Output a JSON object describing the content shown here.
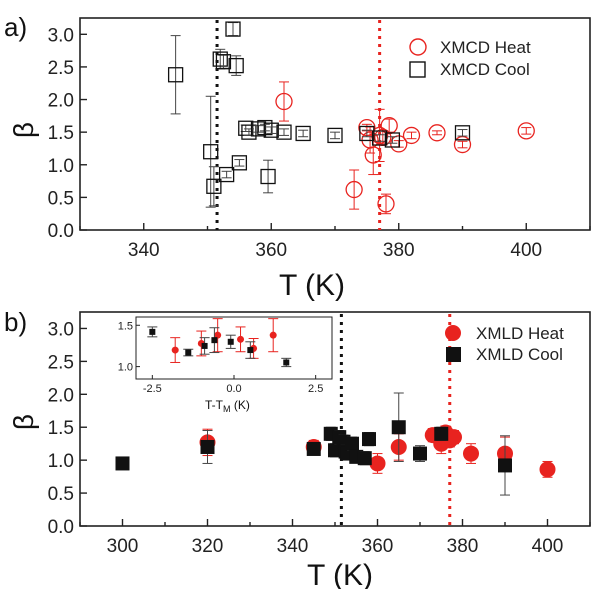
{
  "colors": {
    "heat": "#e8231f",
    "cool": "#111111",
    "axis": "#222222"
  },
  "chart_data": [
    {
      "panel_label": "a)",
      "type": "scatter",
      "xlabel": "T (K)",
      "ylabel": "β",
      "xlim": [
        330,
        410
      ],
      "ylim": [
        0.0,
        3.25
      ],
      "xticks": [
        340,
        360,
        380,
        400
      ],
      "yticks": [
        0.0,
        0.5,
        1.0,
        1.5,
        2.0,
        2.5,
        3.0
      ],
      "legend_position": "top-right",
      "vlines": [
        {
          "x": 351.5,
          "color": "cool"
        },
        {
          "x": 377.0,
          "color": "heat"
        }
      ],
      "series": [
        {
          "name": "XMCD Heat",
          "marker": "circle-open",
          "color": "heat",
          "points": [
            {
              "x": 362,
              "y": 1.97,
              "err": 0.3
            },
            {
              "x": 373,
              "y": 0.62,
              "err": 0.3
            },
            {
              "x": 375,
              "y": 1.57,
              "err": 0.05
            },
            {
              "x": 375.5,
              "y": 1.38,
              "err": 0.2
            },
            {
              "x": 376,
              "y": 1.15,
              "err": 0.3
            },
            {
              "x": 377,
              "y": 1.45,
              "err": 0.4
            },
            {
              "x": 377.5,
              "y": 1.42,
              "err": 0.1
            },
            {
              "x": 378,
              "y": 0.4,
              "err": 0.15
            },
            {
              "x": 378.5,
              "y": 1.6,
              "err": 0.1
            },
            {
              "x": 380,
              "y": 1.32,
              "err": 0.05
            },
            {
              "x": 382,
              "y": 1.45,
              "err": 0.05
            },
            {
              "x": 386,
              "y": 1.49,
              "err": 0.03
            },
            {
              "x": 390,
              "y": 1.31,
              "err": 0.05
            },
            {
              "x": 400,
              "y": 1.52,
              "err": 0.05
            }
          ]
        },
        {
          "name": "XMCD Cool",
          "marker": "square-open",
          "color": "cool",
          "points": [
            {
              "x": 345,
              "y": 2.38,
              "err": 0.6
            },
            {
              "x": 350.5,
              "y": 1.2,
              "err": 0.85
            },
            {
              "x": 351,
              "y": 0.67,
              "err": 0.3
            },
            {
              "x": 352,
              "y": 2.62,
              "err": 0.15
            },
            {
              "x": 352.5,
              "y": 2.58,
              "err": 0.1
            },
            {
              "x": 353,
              "y": 0.85,
              "err": 0.05
            },
            {
              "x": 354,
              "y": 3.08,
              "err": 0.1
            },
            {
              "x": 354.5,
              "y": 2.52,
              "err": 0.15
            },
            {
              "x": 355,
              "y": 1.03,
              "err": 0.05
            },
            {
              "x": 356,
              "y": 1.56,
              "err": 0.05
            },
            {
              "x": 356.5,
              "y": 1.5,
              "err": 0.05
            },
            {
              "x": 358,
              "y": 1.55,
              "err": 0.05
            },
            {
              "x": 359,
              "y": 1.57,
              "err": 0.05
            },
            {
              "x": 359.5,
              "y": 0.82,
              "err": 0.25
            },
            {
              "x": 360,
              "y": 1.53,
              "err": 0.05
            },
            {
              "x": 362,
              "y": 1.5,
              "err": 0.05
            },
            {
              "x": 365,
              "y": 1.48,
              "err": 0.05
            },
            {
              "x": 370,
              "y": 1.45,
              "err": 0.05
            },
            {
              "x": 375,
              "y": 1.48,
              "err": 0.05
            },
            {
              "x": 377,
              "y": 1.41,
              "err": 0.05
            },
            {
              "x": 379,
              "y": 1.38,
              "err": 0.05
            },
            {
              "x": 390,
              "y": 1.49,
              "err": 0.05
            }
          ]
        }
      ]
    },
    {
      "panel_label": "b)",
      "type": "scatter",
      "xlabel": "T (K)",
      "ylabel": "β",
      "xlim": [
        290,
        410
      ],
      "ylim": [
        0.0,
        3.25
      ],
      "xticks": [
        300,
        320,
        340,
        360,
        380,
        400
      ],
      "yticks": [
        0.0,
        0.5,
        1.0,
        1.5,
        2.0,
        2.5,
        3.0
      ],
      "legend_position": "top-right",
      "vlines": [
        {
          "x": 351.5,
          "color": "cool"
        },
        {
          "x": 377.0,
          "color": "heat"
        }
      ],
      "series": [
        {
          "name": "XMLD Heat",
          "marker": "circle-filled",
          "color": "heat",
          "points": [
            {
              "x": 320,
              "y": 1.27,
              "err": 0.2
            },
            {
              "x": 345,
              "y": 1.2,
              "err": 0.1
            },
            {
              "x": 360,
              "y": 0.95,
              "err": 0.15
            },
            {
              "x": 365,
              "y": 1.2,
              "err": 0.2
            },
            {
              "x": 373,
              "y": 1.38,
              "err": 0.1
            },
            {
              "x": 375,
              "y": 1.25,
              "err": 0.15
            },
            {
              "x": 376,
              "y": 1.42,
              "err": 0.1
            },
            {
              "x": 377,
              "y": 1.3,
              "err": 0.1
            },
            {
              "x": 378,
              "y": 1.35,
              "err": 0.1
            },
            {
              "x": 382,
              "y": 1.1,
              "err": 0.15
            },
            {
              "x": 390,
              "y": 1.1,
              "err": 0.25
            },
            {
              "x": 400,
              "y": 0.86,
              "err": 0.12
            }
          ]
        },
        {
          "name": "XMLD Cool",
          "marker": "square-filled",
          "color": "cool",
          "points": [
            {
              "x": 300,
              "y": 0.95,
              "err": 0.03
            },
            {
              "x": 320,
              "y": 1.2,
              "err": 0.25
            },
            {
              "x": 345,
              "y": 1.17,
              "err": 0.08
            },
            {
              "x": 349,
              "y": 1.4,
              "err": 0.1
            },
            {
              "x": 350,
              "y": 1.15,
              "err": 0.1
            },
            {
              "x": 351,
              "y": 1.35,
              "err": 0.1
            },
            {
              "x": 352,
              "y": 1.28,
              "err": 0.1
            },
            {
              "x": 352.5,
              "y": 1.13,
              "err": 0.1
            },
            {
              "x": 353,
              "y": 1.1,
              "err": 0.05
            },
            {
              "x": 354,
              "y": 1.25,
              "err": 0.1
            },
            {
              "x": 355,
              "y": 1.05,
              "err": 0.05
            },
            {
              "x": 357,
              "y": 1.03,
              "err": 0.1
            },
            {
              "x": 358,
              "y": 1.32,
              "err": 0.1
            },
            {
              "x": 365,
              "y": 1.5,
              "err": 0.52
            },
            {
              "x": 370,
              "y": 1.1,
              "err": 0.12
            },
            {
              "x": 375,
              "y": 1.4,
              "err": 0.1
            },
            {
              "x": 390,
              "y": 0.92,
              "err": 0.45
            }
          ]
        }
      ],
      "inset": {
        "xlabel_main": "T-T",
        "xlabel_sub": "M",
        "xlabel_tail": " (K)",
        "xlim": [
          -3.0,
          3.0
        ],
        "ylim": [
          0.85,
          1.6
        ],
        "xticks": [
          "-2.5",
          "0.0",
          "2.5"
        ],
        "xtick_values": [
          -2.5,
          0.0,
          2.5
        ],
        "yticks": [
          "1.0",
          "1.5"
        ],
        "ytick_values": [
          1.0,
          1.5
        ],
        "series": [
          {
            "color": "heat",
            "marker": "circle-filled",
            "points": [
              {
                "x": -1.8,
                "y": 1.2,
                "err": 0.15
              },
              {
                "x": -1.0,
                "y": 1.28,
                "err": 0.15
              },
              {
                "x": -0.5,
                "y": 1.38,
                "err": 0.2
              },
              {
                "x": 0.2,
                "y": 1.33,
                "err": 0.15
              },
              {
                "x": 0.6,
                "y": 1.22,
                "err": 0.12
              },
              {
                "x": 1.2,
                "y": 1.38,
                "err": 0.2
              }
            ]
          },
          {
            "color": "cool",
            "marker": "square-filled",
            "points": [
              {
                "x": -2.5,
                "y": 1.42,
                "err": 0.06
              },
              {
                "x": -1.4,
                "y": 1.17,
                "err": 0.04
              },
              {
                "x": -0.9,
                "y": 1.25,
                "err": 0.1
              },
              {
                "x": -0.6,
                "y": 1.32,
                "err": 0.15
              },
              {
                "x": -0.1,
                "y": 1.3,
                "err": 0.08
              },
              {
                "x": 0.5,
                "y": 1.2,
                "err": 0.1
              },
              {
                "x": 1.6,
                "y": 1.05,
                "err": 0.05
              }
            ]
          }
        ]
      }
    }
  ]
}
